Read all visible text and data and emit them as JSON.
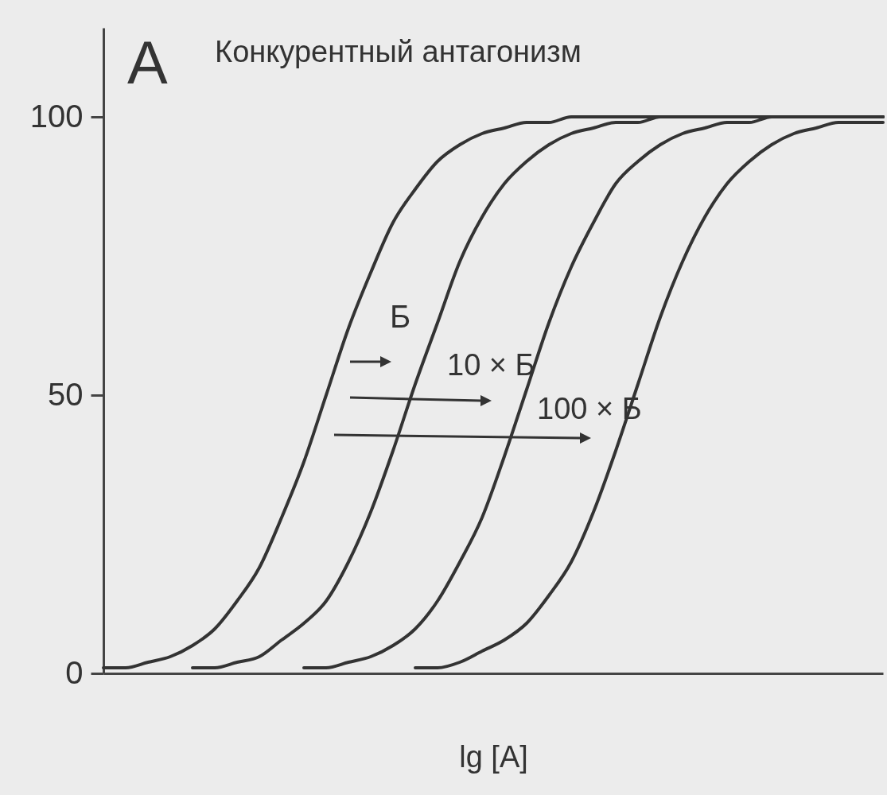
{
  "chart_data": {
    "type": "line",
    "title": "Конкурентный антагонизм",
    "xlabel": "lg [A]",
    "categories": [
      null,
      null,
      null,
      null,
      null,
      null,
      null,
      null,
      null,
      null,
      null,
      null,
      null,
      null,
      null,
      null,
      null,
      null,
      null,
      null,
      null,
      null,
      null,
      null,
      null,
      null,
      null,
      null,
      null,
      null,
      null,
      null,
      null,
      null,
      null,
      null
    ],
    "ylim": [
      0,
      116
    ],
    "yticks": [
      0,
      50,
      100
    ],
    "series": [
      {
        "color": "#333333",
        "values": [
          1,
          1,
          2,
          3,
          5,
          8,
          13,
          19,
          28,
          38,
          50,
          62,
          72,
          81,
          87,
          92,
          95,
          97,
          98,
          99,
          99,
          100,
          100,
          100,
          100,
          100,
          100,
          100,
          100,
          100,
          100,
          100,
          100,
          100,
          100,
          100
        ]
      },
      {
        "color": "#333333",
        "values": [
          null,
          null,
          null,
          null,
          1,
          1,
          2,
          3,
          6,
          9,
          13,
          20,
          29,
          40,
          52,
          63,
          74,
          82,
          88,
          92,
          95,
          97,
          98,
          99,
          99,
          100,
          100,
          100,
          100,
          100,
          100,
          100,
          100,
          100,
          100,
          100
        ]
      },
      {
        "color": "#333333",
        "values": [
          null,
          null,
          null,
          null,
          null,
          null,
          null,
          null,
          null,
          1,
          1,
          2,
          3,
          5,
          8,
          13,
          20,
          28,
          39,
          51,
          63,
          73,
          81,
          88,
          92,
          95,
          97,
          98,
          99,
          99,
          100,
          100,
          100,
          100,
          100,
          100
        ]
      },
      {
        "color": "#333333",
        "values": [
          null,
          null,
          null,
          null,
          null,
          null,
          null,
          null,
          null,
          null,
          null,
          null,
          null,
          null,
          1,
          1,
          2,
          4,
          6,
          9,
          14,
          20,
          29,
          40,
          52,
          64,
          74,
          82,
          88,
          92,
          95,
          97,
          98,
          99,
          99,
          99
        ]
      }
    ],
    "annotations": [
      "А",
      "Б",
      "10 × Б",
      "100 × Б"
    ]
  }
}
